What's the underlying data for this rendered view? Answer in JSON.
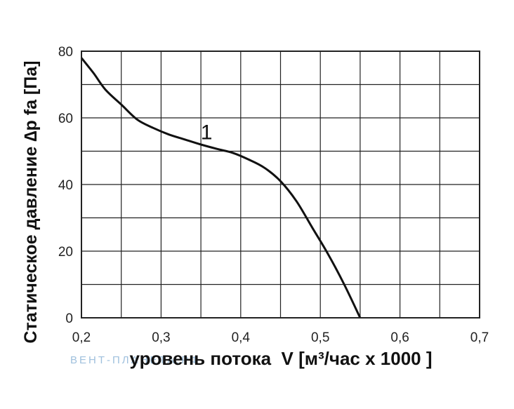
{
  "chart_data": {
    "type": "line",
    "title": "",
    "xlabel": "уровень потока  V [м³/час x 1000 ]",
    "ylabel": "Статическое давление  ∆p fa [Па]",
    "xlim": [
      0.2,
      0.7
    ],
    "ylim": [
      0,
      80
    ],
    "grid": true,
    "x_ticks": [
      "0,2",
      "0,3",
      "0,4",
      "0,5",
      "0,6",
      "0,7"
    ],
    "y_ticks": [
      "0",
      "20",
      "40",
      "60",
      "80"
    ],
    "series": [
      {
        "name": "1",
        "x": [
          0.2,
          0.215,
          0.23,
          0.25,
          0.27,
          0.29,
          0.31,
          0.33,
          0.35,
          0.37,
          0.39,
          0.41,
          0.43,
          0.45,
          0.47,
          0.49,
          0.51,
          0.53,
          0.55
        ],
        "y": [
          78,
          73.5,
          68.5,
          64,
          59.5,
          57,
          55,
          53.5,
          52,
          50.7,
          49.5,
          47.5,
          45,
          41,
          35,
          27,
          19,
          10,
          0
        ]
      }
    ]
  },
  "watermark": "ВЕНТ-ПЛАНЕТА.РФ"
}
